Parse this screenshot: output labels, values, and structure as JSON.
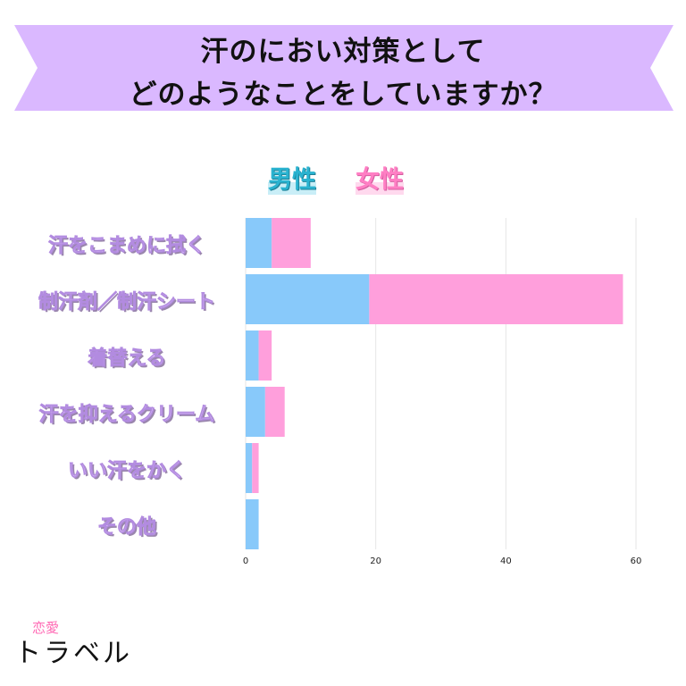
{
  "header": {
    "title_line1": "汗のにおい対策として",
    "title_line2": "どのようなことをしていますか？",
    "banner_color": "#dab8ff"
  },
  "legend": {
    "male": "男性",
    "female": "女性"
  },
  "brand": {
    "small": "恋愛",
    "main": "トラベル"
  },
  "chart_data": {
    "type": "bar",
    "orientation": "horizontal",
    "stacked": true,
    "categories": [
      "汗をこまめに拭く",
      "制汗剤／制汗シート",
      "着替える",
      "汗を抑えるクリーム",
      "いい汗をかく",
      "その他"
    ],
    "series": [
      {
        "name": "男性",
        "color": "#88c9fa",
        "values": [
          4,
          19,
          2,
          3,
          1,
          2
        ]
      },
      {
        "name": "女性",
        "color": "#ff9fdc",
        "values": [
          6,
          39,
          2,
          3,
          1,
          0
        ]
      }
    ],
    "xlim": [
      0,
      60
    ],
    "xticks": [
      0,
      20,
      40,
      60
    ],
    "grid": true
  }
}
